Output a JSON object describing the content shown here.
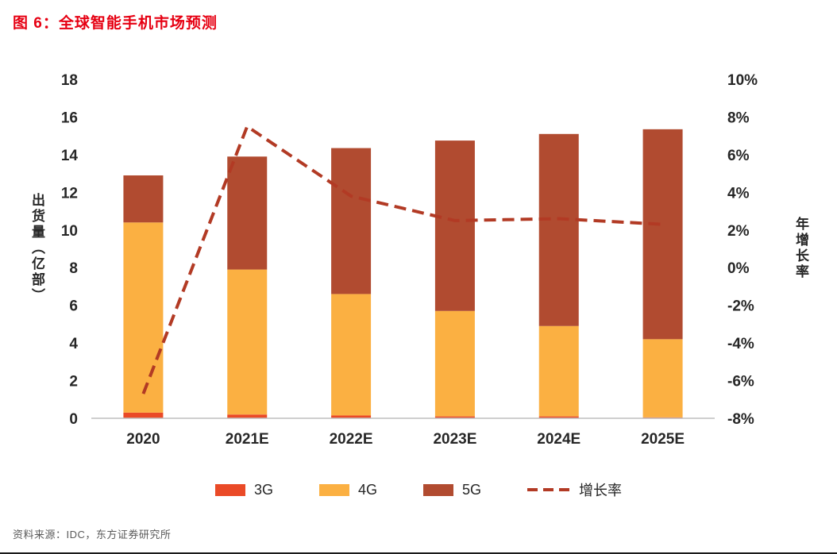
{
  "title": "图 6：全球智能手机市场预测",
  "source": "资料来源：IDC，东方证券研究所",
  "chart_data": {
    "type": "bar",
    "subtype": "stacked-bar-with-line",
    "categories": [
      "2020",
      "2021E",
      "2022E",
      "2023E",
      "2024E",
      "2025E"
    ],
    "series": [
      {
        "name": "3G",
        "type": "bar",
        "axis": "left",
        "color": "#ea4a27",
        "values": [
          0.3,
          0.2,
          0.15,
          0.1,
          0.1,
          0.05
        ]
      },
      {
        "name": "4G",
        "type": "bar",
        "axis": "left",
        "color": "#fbb042",
        "values": [
          10.1,
          7.7,
          6.45,
          5.6,
          4.8,
          4.15
        ]
      },
      {
        "name": "5G",
        "type": "bar",
        "axis": "left",
        "color": "#b14b30",
        "values": [
          2.5,
          6.0,
          7.75,
          9.05,
          10.2,
          11.15
        ]
      },
      {
        "name": "增长率",
        "type": "line",
        "axis": "right",
        "color": "#b23a24",
        "values": [
          -6.7,
          7.5,
          3.8,
          2.5,
          2.6,
          2.3
        ]
      }
    ],
    "bar_totals": [
      12.9,
      13.9,
      14.35,
      14.75,
      15.1,
      15.35
    ],
    "left_axis": {
      "label": "出货量（亿部）",
      "min": 0,
      "max": 18,
      "step": 2
    },
    "right_axis": {
      "label": "年增长率",
      "min": -8,
      "max": 10,
      "step": 2,
      "suffix": "%"
    },
    "stacked": true,
    "grid": false,
    "legend_position": "bottom",
    "title_color": "#e60012"
  }
}
